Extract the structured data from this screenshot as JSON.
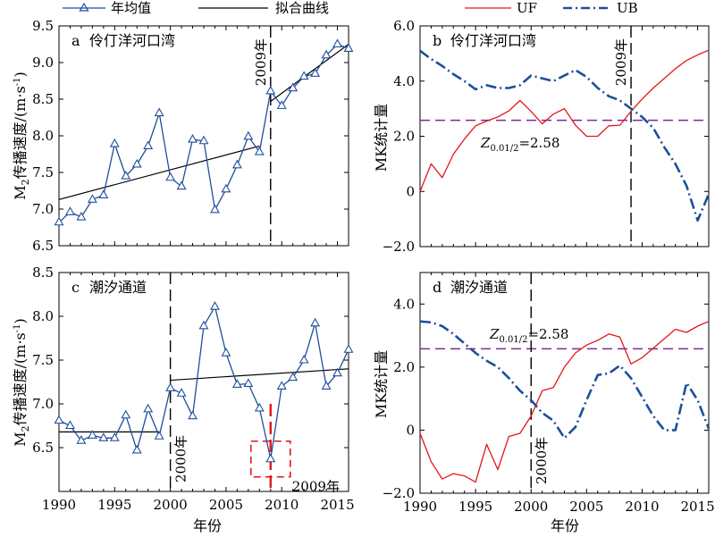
{
  "legend_top": {
    "annual": "年均值",
    "fit": "拟合曲线",
    "uf": "UF",
    "ub": "UB"
  },
  "colors": {
    "annual": "#1F4E9A",
    "fit": "#000000",
    "uf": "#E3161C",
    "ub": "#1F4E9A",
    "threshold": "#7B2C91",
    "highlight": "#E3161C"
  },
  "labels": {
    "xlabel": "年份",
    "ylabel_speed_prefix": "M",
    "ylabel_speed_sub": "2",
    "ylabel_speed_main": "传播速度/(m·s",
    "ylabel_speed_sup": "-1",
    "ylabel_speed_end": ")",
    "ylabel_mk": "MK统计量",
    "z_label_main": "Z",
    "z_label_sub": "0.01/2",
    "z_label_value": "=2.58"
  },
  "chart_data": [
    {
      "id": "a",
      "type": "line",
      "panel_letter": "a",
      "panel_name": "伶仃洋河口湾",
      "ylim": [
        6.5,
        9.5
      ],
      "yticks": [
        "6.5",
        "7.0",
        "7.5",
        "8.0",
        "8.5",
        "9.0",
        "9.5"
      ],
      "xlim": [
        1990,
        2016
      ],
      "xticks": [
        "1990",
        "1995",
        "2000",
        "2005",
        "2010",
        "2015"
      ],
      "change_point": 2009,
      "change_label": "2009年",
      "series": [
        {
          "name": "年均值",
          "x": [
            1990,
            1991,
            1992,
            1993,
            1994,
            1995,
            1996,
            1997,
            1998,
            1999,
            2000,
            2001,
            2002,
            2003,
            2004,
            2005,
            2006,
            2007,
            2008,
            2009,
            2010,
            2011,
            2012,
            2013,
            2014,
            2015,
            2016
          ],
          "values": [
            6.82,
            6.96,
            6.89,
            7.13,
            7.19,
            7.89,
            7.45,
            7.61,
            7.86,
            8.31,
            7.43,
            7.31,
            7.95,
            7.93,
            6.99,
            7.27,
            7.6,
            7.99,
            7.78,
            8.61,
            8.41,
            8.65,
            8.81,
            8.85,
            9.1,
            9.25,
            9.19
          ]
        }
      ],
      "fits": [
        {
          "x": [
            1990,
            2008
          ],
          "values": [
            7.13,
            7.86
          ]
        },
        {
          "x": [
            2009,
            2016
          ],
          "values": [
            8.47,
            9.25
          ]
        }
      ]
    },
    {
      "id": "b",
      "type": "line",
      "panel_letter": "b",
      "panel_name": "伶仃洋河口湾",
      "ylim": [
        -2.0,
        6.0
      ],
      "yticks": [
        "−2.0",
        "0",
        "2.0",
        "4.0",
        "6.0"
      ],
      "xlim": [
        1990,
        2016
      ],
      "xticks": [
        "1990",
        "1995",
        "2000",
        "2005",
        "2010",
        "2015"
      ],
      "threshold": 2.58,
      "change_point": 2009,
      "change_label": "2009年",
      "series": [
        {
          "name": "UF",
          "x": [
            1990,
            1991,
            1992,
            1993,
            1994,
            1995,
            1996,
            1997,
            1998,
            1999,
            2000,
            2001,
            2002,
            2003,
            2004,
            2005,
            2006,
            2007,
            2008,
            2009,
            2010,
            2011,
            2012,
            2013,
            2014,
            2015,
            2016
          ],
          "values": [
            0.0,
            1.0,
            0.5,
            1.35,
            1.9,
            2.38,
            2.55,
            2.7,
            2.92,
            3.3,
            2.9,
            2.45,
            2.8,
            3.0,
            2.4,
            2.0,
            2.0,
            2.38,
            2.4,
            2.9,
            3.35,
            3.75,
            4.1,
            4.45,
            4.75,
            4.95,
            5.12
          ]
        },
        {
          "name": "UB",
          "x": [
            1990,
            1991,
            1992,
            1993,
            1994,
            1995,
            1996,
            1997,
            1998,
            1999,
            2000,
            2001,
            2002,
            2003,
            2004,
            2005,
            2006,
            2007,
            2008,
            2009,
            2010,
            2011,
            2012,
            2013,
            2014,
            2015,
            2016
          ],
          "values": [
            5.1,
            4.8,
            4.55,
            4.25,
            4.0,
            3.7,
            3.85,
            3.75,
            3.75,
            3.85,
            4.2,
            4.1,
            4.0,
            4.2,
            4.4,
            4.15,
            3.75,
            3.45,
            3.3,
            3.0,
            2.7,
            2.3,
            1.6,
            1.0,
            0.2,
            -1.05,
            -0.1
          ]
        }
      ]
    },
    {
      "id": "c",
      "type": "line",
      "panel_letter": "c",
      "panel_name": "潮汐通道",
      "ylim": [
        6.0,
        8.5
      ],
      "yticks": [
        "6.5",
        "7.0",
        "7.5",
        "8.0",
        "8.5"
      ],
      "xlim": [
        1990,
        2016
      ],
      "xticks": [
        "1990",
        "1995",
        "2000",
        "2005",
        "2010",
        "2015"
      ],
      "change_point": 2000,
      "change_label": "2000年",
      "highlight_year": 2009,
      "highlight_label": "2009年",
      "series": [
        {
          "name": "年均值",
          "x": [
            1990,
            1991,
            1992,
            1993,
            1994,
            1995,
            1996,
            1997,
            1998,
            1999,
            2000,
            2001,
            2002,
            2003,
            2004,
            2005,
            2006,
            2007,
            2008,
            2009,
            2010,
            2011,
            2012,
            2013,
            2014,
            2015,
            2016
          ],
          "values": [
            6.81,
            6.75,
            6.58,
            6.64,
            6.61,
            6.61,
            6.87,
            6.47,
            6.94,
            6.63,
            7.18,
            7.12,
            6.86,
            7.89,
            8.11,
            7.58,
            7.22,
            7.23,
            6.95,
            6.37,
            7.2,
            7.3,
            7.5,
            7.92,
            7.2,
            7.35,
            7.62
          ]
        }
      ],
      "fits": [
        {
          "x": [
            1990,
            1999
          ],
          "values": [
            6.68,
            6.68
          ]
        },
        {
          "x": [
            2000,
            2016
          ],
          "values": [
            7.27,
            7.4
          ]
        }
      ]
    },
    {
      "id": "d",
      "type": "line",
      "panel_letter": "d",
      "panel_name": "潮汐通道",
      "ylim": [
        -2.0,
        5.0
      ],
      "yticks": [
        "−2.0",
        "0",
        "2.0",
        "4.0"
      ],
      "xlim": [
        1990,
        2016
      ],
      "xticks": [
        "1990",
        "1995",
        "2000",
        "2005",
        "2010",
        "2015"
      ],
      "threshold": 2.58,
      "change_point": 2000,
      "change_label": "2000年",
      "series": [
        {
          "name": "UF",
          "x": [
            1990,
            1991,
            1992,
            1993,
            1994,
            1995,
            1996,
            1997,
            1998,
            1999,
            2000,
            2001,
            2002,
            2003,
            2004,
            2005,
            2006,
            2007,
            2008,
            2009,
            2010,
            2011,
            2012,
            2013,
            2014,
            2015,
            2016
          ],
          "values": [
            -0.1,
            -1.0,
            -1.55,
            -1.38,
            -1.45,
            -1.65,
            -0.45,
            -1.25,
            -0.2,
            -0.1,
            0.45,
            1.25,
            1.35,
            2.0,
            2.45,
            2.7,
            2.85,
            3.05,
            2.95,
            2.1,
            2.3,
            2.6,
            2.9,
            3.2,
            3.1,
            3.3,
            3.45
          ]
        },
        {
          "name": "UB",
          "x": [
            1990,
            1991,
            1992,
            1993,
            1994,
            1995,
            1996,
            1997,
            1998,
            1999,
            2000,
            2001,
            2002,
            2003,
            2004,
            2005,
            2006,
            2007,
            2008,
            2009,
            2010,
            2011,
            2012,
            2013,
            2014,
            2015,
            2016
          ],
          "values": [
            3.45,
            3.42,
            3.3,
            3.05,
            2.75,
            2.45,
            2.2,
            2.0,
            1.65,
            1.25,
            0.95,
            0.55,
            0.3,
            -0.25,
            0.1,
            0.95,
            1.75,
            1.8,
            2.05,
            1.65,
            1.05,
            0.45,
            0.0,
            0.0,
            1.5,
            0.95,
            0.05
          ]
        }
      ]
    }
  ]
}
